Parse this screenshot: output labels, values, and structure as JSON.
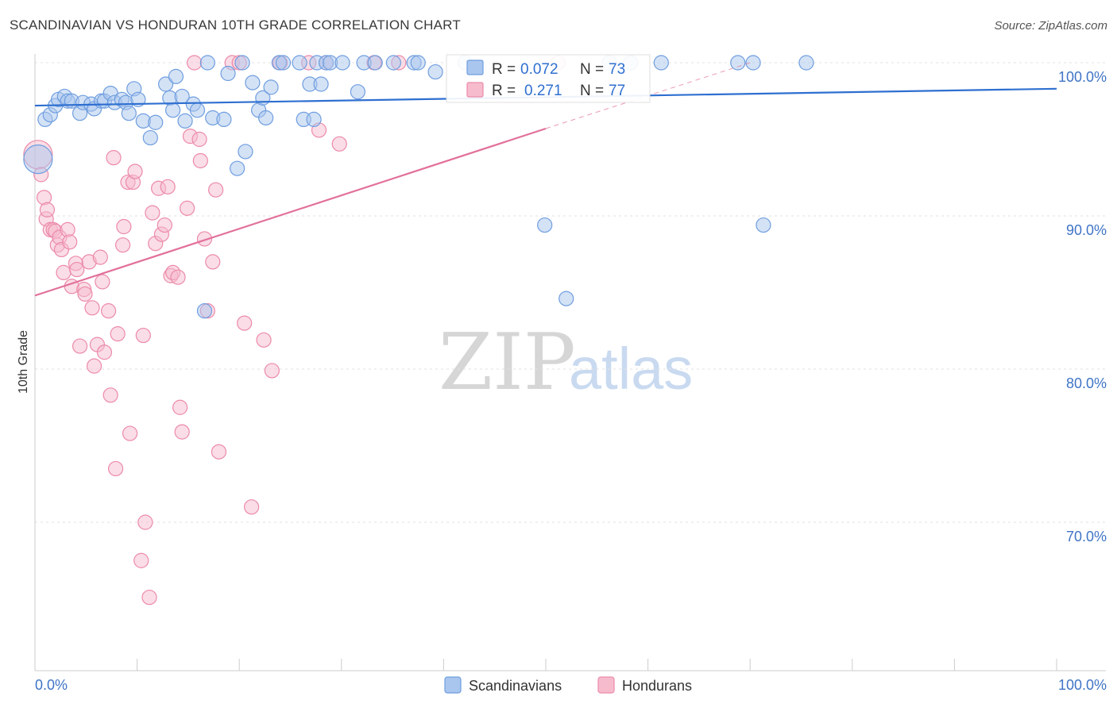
{
  "header": {
    "title": "SCANDINAVIAN VS HONDURAN 10TH GRADE CORRELATION CHART",
    "source": "Source: ZipAtlas.com"
  },
  "legend": {
    "series": [
      {
        "r_label": "R =",
        "r_value": "0.072",
        "n_label": "N =",
        "n_value": "73"
      },
      {
        "r_label": "R =",
        "r_value": "0.271",
        "n_label": "N =",
        "n_value": "77"
      }
    ],
    "bottom": [
      "Scandinavians",
      "Hondurans"
    ]
  },
  "watermark": {
    "zip": "ZIP",
    "atlas": "atlas"
  },
  "chart_data": {
    "type": "scatter",
    "title": "SCANDINAVIAN VS HONDURAN 10TH GRADE CORRELATION CHART",
    "xlabel": "",
    "ylabel": "10th Grade",
    "xlim": [
      0,
      100
    ],
    "ylim": [
      60.4,
      100.8
    ],
    "x_ticks": [
      "0.0%",
      "100.0%"
    ],
    "y_ticks": [
      {
        "value": 100,
        "label": "100.0%"
      },
      {
        "value": 90,
        "label": "90.0%"
      },
      {
        "value": 80,
        "label": "80.0%"
      },
      {
        "value": 70,
        "label": "70.0%"
      }
    ],
    "colors": {
      "scandinavians_fill": "#a9c6ee",
      "scandinavians_stroke": "#6f9edf",
      "scandinavians_line": "#2e6fd0",
      "hondurans_fill": "#f6bccd",
      "hondurans_stroke": "#ec8aa9",
      "hondurans_line": "#e2709a"
    },
    "series": [
      {
        "name": "Scandinavians",
        "trend": {
          "x0": 0,
          "y0": 97.2,
          "x1": 100,
          "y1": 98.3
        },
        "points": [
          [
            0.3,
            93.7
          ],
          [
            1.0,
            96.3
          ],
          [
            1.5,
            96.6
          ],
          [
            2.0,
            97.2
          ],
          [
            2.3,
            97.6
          ],
          [
            2.9,
            97.8
          ],
          [
            3.2,
            97.5
          ],
          [
            3.6,
            97.5
          ],
          [
            4.4,
            96.7
          ],
          [
            4.7,
            97.4
          ],
          [
            5.5,
            97.3
          ],
          [
            5.8,
            97.0
          ],
          [
            6.5,
            97.5
          ],
          [
            6.8,
            97.5
          ],
          [
            7.4,
            98.0
          ],
          [
            7.8,
            97.4
          ],
          [
            8.5,
            97.6
          ],
          [
            8.9,
            97.4
          ],
          [
            9.2,
            96.7
          ],
          [
            9.7,
            98.3
          ],
          [
            10.1,
            97.6
          ],
          [
            10.6,
            96.2
          ],
          [
            11.3,
            95.1
          ],
          [
            11.8,
            96.1
          ],
          [
            12.8,
            98.6
          ],
          [
            13.2,
            97.7
          ],
          [
            13.5,
            96.9
          ],
          [
            13.8,
            99.1
          ],
          [
            14.4,
            97.8
          ],
          [
            14.7,
            96.2
          ],
          [
            15.5,
            97.3
          ],
          [
            15.9,
            96.9
          ],
          [
            16.6,
            83.8
          ],
          [
            16.9,
            100.0
          ],
          [
            17.4,
            96.4
          ],
          [
            18.5,
            96.3
          ],
          [
            18.9,
            99.3
          ],
          [
            19.8,
            93.1
          ],
          [
            20.3,
            100.0
          ],
          [
            20.6,
            94.2
          ],
          [
            21.3,
            98.7
          ],
          [
            21.9,
            96.9
          ],
          [
            22.3,
            97.7
          ],
          [
            22.6,
            96.4
          ],
          [
            23.1,
            98.4
          ],
          [
            23.9,
            100.0
          ],
          [
            24.3,
            100.0
          ],
          [
            25.9,
            100.0
          ],
          [
            26.3,
            96.3
          ],
          [
            26.9,
            98.6
          ],
          [
            27.3,
            96.3
          ],
          [
            27.6,
            100.0
          ],
          [
            28.0,
            98.6
          ],
          [
            28.5,
            100.0
          ],
          [
            28.9,
            100.0
          ],
          [
            30.1,
            100.0
          ],
          [
            31.6,
            98.1
          ],
          [
            32.2,
            100.0
          ],
          [
            33.3,
            100.0
          ],
          [
            35.1,
            100.0
          ],
          [
            37.1,
            100.0
          ],
          [
            37.5,
            100.0
          ],
          [
            39.2,
            99.4
          ],
          [
            42.1,
            100.0
          ],
          [
            49.9,
            89.4
          ],
          [
            52.0,
            84.6
          ],
          [
            56.2,
            100.0
          ],
          [
            58.3,
            100.0
          ],
          [
            61.3,
            100.0
          ],
          [
            68.8,
            100.0
          ],
          [
            70.3,
            100.0
          ],
          [
            71.3,
            89.4
          ],
          [
            75.5,
            100.0
          ]
        ]
      },
      {
        "name": "Hondurans",
        "trend": {
          "x0": 0,
          "y0": 84.8,
          "x1": 50,
          "y1": 95.7
        },
        "trend_ext": {
          "x0": 50,
          "y0": 95.7,
          "x1": 70,
          "y1": 100.0
        },
        "points": [
          [
            0.3,
            94.0
          ],
          [
            0.6,
            92.7
          ],
          [
            0.9,
            91.2
          ],
          [
            1.1,
            89.8
          ],
          [
            1.2,
            90.4
          ],
          [
            1.5,
            89.1
          ],
          [
            1.8,
            89.1
          ],
          [
            2.0,
            89.0
          ],
          [
            2.2,
            88.1
          ],
          [
            2.4,
            88.6
          ],
          [
            2.6,
            87.8
          ],
          [
            2.8,
            86.3
          ],
          [
            3.2,
            89.1
          ],
          [
            3.4,
            88.3
          ],
          [
            3.6,
            85.4
          ],
          [
            4.0,
            86.9
          ],
          [
            4.1,
            86.5
          ],
          [
            4.4,
            81.5
          ],
          [
            4.8,
            85.2
          ],
          [
            4.9,
            84.9
          ],
          [
            5.3,
            87.0
          ],
          [
            5.6,
            84.0
          ],
          [
            5.8,
            80.2
          ],
          [
            6.1,
            81.6
          ],
          [
            6.4,
            87.3
          ],
          [
            6.6,
            85.7
          ],
          [
            6.8,
            81.1
          ],
          [
            7.2,
            83.8
          ],
          [
            7.4,
            78.3
          ],
          [
            7.7,
            93.8
          ],
          [
            7.9,
            73.5
          ],
          [
            8.1,
            82.3
          ],
          [
            8.6,
            88.1
          ],
          [
            8.7,
            89.3
          ],
          [
            9.1,
            92.2
          ],
          [
            9.3,
            75.8
          ],
          [
            9.6,
            92.2
          ],
          [
            9.8,
            92.9
          ],
          [
            10.4,
            67.5
          ],
          [
            10.6,
            82.2
          ],
          [
            10.8,
            70.0
          ],
          [
            11.2,
            65.1
          ],
          [
            11.5,
            90.2
          ],
          [
            11.8,
            88.2
          ],
          [
            12.1,
            91.8
          ],
          [
            12.4,
            88.8
          ],
          [
            12.7,
            89.4
          ],
          [
            13.0,
            91.9
          ],
          [
            13.3,
            86.1
          ],
          [
            13.5,
            86.3
          ],
          [
            14.0,
            86.0
          ],
          [
            14.2,
            77.5
          ],
          [
            14.4,
            75.9
          ],
          [
            14.9,
            90.5
          ],
          [
            15.2,
            95.2
          ],
          [
            15.6,
            100.0
          ],
          [
            16.1,
            95.0
          ],
          [
            16.2,
            93.6
          ],
          [
            16.6,
            88.5
          ],
          [
            16.9,
            83.8
          ],
          [
            17.4,
            87.0
          ],
          [
            17.7,
            91.7
          ],
          [
            18.0,
            74.6
          ],
          [
            19.3,
            100.0
          ],
          [
            20.0,
            100.0
          ],
          [
            20.5,
            83.0
          ],
          [
            21.2,
            71.0
          ],
          [
            22.4,
            81.9
          ],
          [
            23.2,
            79.9
          ],
          [
            24.0,
            100.0
          ],
          [
            26.8,
            100.0
          ],
          [
            27.8,
            95.6
          ],
          [
            28.5,
            100.0
          ],
          [
            29.8,
            94.7
          ],
          [
            33.2,
            100.0
          ],
          [
            35.6,
            100.0
          ],
          [
            51.2,
            100.0
          ]
        ]
      }
    ]
  }
}
